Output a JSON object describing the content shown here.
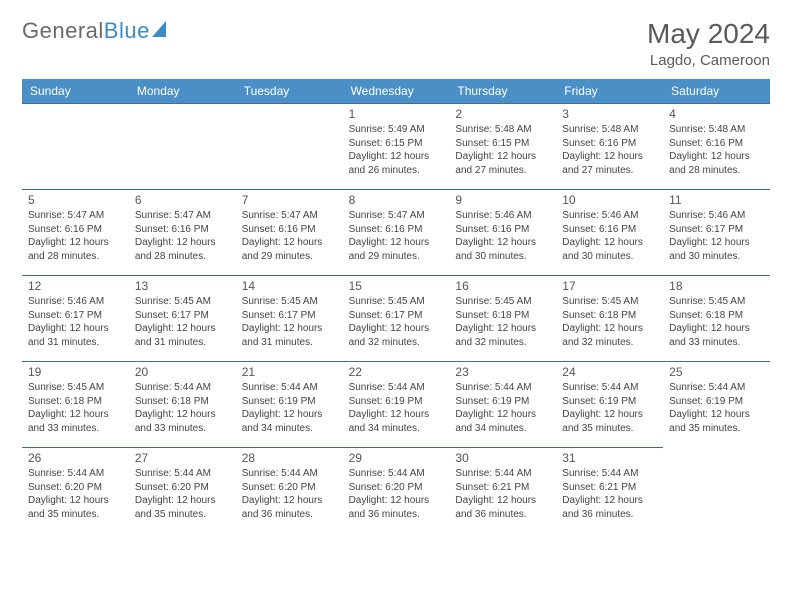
{
  "logo": {
    "text1": "General",
    "text2": "Blue"
  },
  "title": "May 2024",
  "location": "Lagdo, Cameroon",
  "colors": {
    "header_bg": "#4a90c7",
    "header_text": "#ffffff",
    "row_border": "#3b6f99",
    "text_gray": "#5a5a5a",
    "cell_text": "#444444"
  },
  "weekdays": [
    "Sunday",
    "Monday",
    "Tuesday",
    "Wednesday",
    "Thursday",
    "Friday",
    "Saturday"
  ],
  "leading_blanks": 3,
  "days": [
    {
      "n": "1",
      "sunrise": "5:49 AM",
      "sunset": "6:15 PM",
      "daylight": "12 hours and 26 minutes."
    },
    {
      "n": "2",
      "sunrise": "5:48 AM",
      "sunset": "6:15 PM",
      "daylight": "12 hours and 27 minutes."
    },
    {
      "n": "3",
      "sunrise": "5:48 AM",
      "sunset": "6:16 PM",
      "daylight": "12 hours and 27 minutes."
    },
    {
      "n": "4",
      "sunrise": "5:48 AM",
      "sunset": "6:16 PM",
      "daylight": "12 hours and 28 minutes."
    },
    {
      "n": "5",
      "sunrise": "5:47 AM",
      "sunset": "6:16 PM",
      "daylight": "12 hours and 28 minutes."
    },
    {
      "n": "6",
      "sunrise": "5:47 AM",
      "sunset": "6:16 PM",
      "daylight": "12 hours and 28 minutes."
    },
    {
      "n": "7",
      "sunrise": "5:47 AM",
      "sunset": "6:16 PM",
      "daylight": "12 hours and 29 minutes."
    },
    {
      "n": "8",
      "sunrise": "5:47 AM",
      "sunset": "6:16 PM",
      "daylight": "12 hours and 29 minutes."
    },
    {
      "n": "9",
      "sunrise": "5:46 AM",
      "sunset": "6:16 PM",
      "daylight": "12 hours and 30 minutes."
    },
    {
      "n": "10",
      "sunrise": "5:46 AM",
      "sunset": "6:16 PM",
      "daylight": "12 hours and 30 minutes."
    },
    {
      "n": "11",
      "sunrise": "5:46 AM",
      "sunset": "6:17 PM",
      "daylight": "12 hours and 30 minutes."
    },
    {
      "n": "12",
      "sunrise": "5:46 AM",
      "sunset": "6:17 PM",
      "daylight": "12 hours and 31 minutes."
    },
    {
      "n": "13",
      "sunrise": "5:45 AM",
      "sunset": "6:17 PM",
      "daylight": "12 hours and 31 minutes."
    },
    {
      "n": "14",
      "sunrise": "5:45 AM",
      "sunset": "6:17 PM",
      "daylight": "12 hours and 31 minutes."
    },
    {
      "n": "15",
      "sunrise": "5:45 AM",
      "sunset": "6:17 PM",
      "daylight": "12 hours and 32 minutes."
    },
    {
      "n": "16",
      "sunrise": "5:45 AM",
      "sunset": "6:18 PM",
      "daylight": "12 hours and 32 minutes."
    },
    {
      "n": "17",
      "sunrise": "5:45 AM",
      "sunset": "6:18 PM",
      "daylight": "12 hours and 32 minutes."
    },
    {
      "n": "18",
      "sunrise": "5:45 AM",
      "sunset": "6:18 PM",
      "daylight": "12 hours and 33 minutes."
    },
    {
      "n": "19",
      "sunrise": "5:45 AM",
      "sunset": "6:18 PM",
      "daylight": "12 hours and 33 minutes."
    },
    {
      "n": "20",
      "sunrise": "5:44 AM",
      "sunset": "6:18 PM",
      "daylight": "12 hours and 33 minutes."
    },
    {
      "n": "21",
      "sunrise": "5:44 AM",
      "sunset": "6:19 PM",
      "daylight": "12 hours and 34 minutes."
    },
    {
      "n": "22",
      "sunrise": "5:44 AM",
      "sunset": "6:19 PM",
      "daylight": "12 hours and 34 minutes."
    },
    {
      "n": "23",
      "sunrise": "5:44 AM",
      "sunset": "6:19 PM",
      "daylight": "12 hours and 34 minutes."
    },
    {
      "n": "24",
      "sunrise": "5:44 AM",
      "sunset": "6:19 PM",
      "daylight": "12 hours and 35 minutes."
    },
    {
      "n": "25",
      "sunrise": "5:44 AM",
      "sunset": "6:19 PM",
      "daylight": "12 hours and 35 minutes."
    },
    {
      "n": "26",
      "sunrise": "5:44 AM",
      "sunset": "6:20 PM",
      "daylight": "12 hours and 35 minutes."
    },
    {
      "n": "27",
      "sunrise": "5:44 AM",
      "sunset": "6:20 PM",
      "daylight": "12 hours and 35 minutes."
    },
    {
      "n": "28",
      "sunrise": "5:44 AM",
      "sunset": "6:20 PM",
      "daylight": "12 hours and 36 minutes."
    },
    {
      "n": "29",
      "sunrise": "5:44 AM",
      "sunset": "6:20 PM",
      "daylight": "12 hours and 36 minutes."
    },
    {
      "n": "30",
      "sunrise": "5:44 AM",
      "sunset": "6:21 PM",
      "daylight": "12 hours and 36 minutes."
    },
    {
      "n": "31",
      "sunrise": "5:44 AM",
      "sunset": "6:21 PM",
      "daylight": "12 hours and 36 minutes."
    }
  ],
  "labels": {
    "sunrise": "Sunrise: ",
    "sunset": "Sunset: ",
    "daylight": "Daylight: "
  }
}
